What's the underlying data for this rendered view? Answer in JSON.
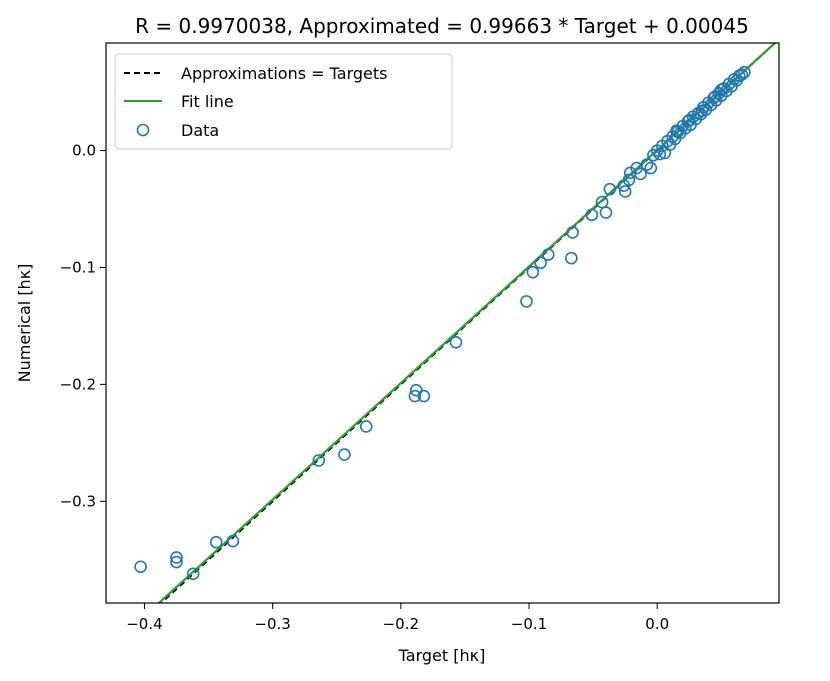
{
  "chart_data": {
    "type": "scatter",
    "title": "R = 0.9970038, Approximated = 0.99663 * Target + 0.00045",
    "xlabel": "Target [hκ]",
    "ylabel": "Numerical [hκ]",
    "xlim": [
      -0.43,
      0.095
    ],
    "ylim": [
      -0.387,
      0.092
    ],
    "xticks": [
      -0.4,
      -0.3,
      -0.2,
      -0.1,
      0.0
    ],
    "xtick_labels": [
      "−0.4",
      "−0.3",
      "−0.2",
      "−0.1",
      "0.0"
    ],
    "yticks": [
      -0.3,
      -0.2,
      -0.1,
      0.0
    ],
    "ytick_labels": [
      "−0.3",
      "−0.2",
      "−0.1",
      "0.0"
    ],
    "legend": {
      "position": "upper-left",
      "entries": [
        {
          "label": "Approximations = Targets",
          "style": "dashed-line",
          "color": "#000000"
        },
        {
          "label": "Fit line",
          "style": "solid-line",
          "color": "#2ca02c"
        },
        {
          "label": "Data",
          "style": "marker",
          "color": "#1f77b4"
        }
      ]
    },
    "fit_line": {
      "slope": 0.99663,
      "intercept": 0.00045,
      "color": "#2ca02c"
    },
    "identity_line": {
      "slope": 1,
      "intercept": 0,
      "color": "#000000"
    },
    "series": [
      {
        "name": "Data",
        "marker": "open-circle",
        "color": "#1f77b4",
        "points": [
          [
            -0.403,
            -0.356
          ],
          [
            -0.375,
            -0.348
          ],
          [
            -0.375,
            -0.352
          ],
          [
            -0.362,
            -0.362
          ],
          [
            -0.344,
            -0.335
          ],
          [
            -0.331,
            -0.334
          ],
          [
            -0.264,
            -0.265
          ],
          [
            -0.244,
            -0.26
          ],
          [
            -0.227,
            -0.236
          ],
          [
            -0.189,
            -0.21
          ],
          [
            -0.188,
            -0.205
          ],
          [
            -0.182,
            -0.21
          ],
          [
            -0.157,
            -0.164
          ],
          [
            -0.102,
            -0.129
          ],
          [
            -0.097,
            -0.104
          ],
          [
            -0.091,
            -0.096
          ],
          [
            -0.085,
            -0.089
          ],
          [
            -0.067,
            -0.092
          ],
          [
            -0.066,
            -0.07
          ],
          [
            -0.051,
            -0.055
          ],
          [
            -0.043,
            -0.044
          ],
          [
            -0.04,
            -0.053
          ],
          [
            -0.037,
            -0.033
          ],
          [
            -0.026,
            -0.03
          ],
          [
            -0.025,
            -0.035
          ],
          [
            -0.022,
            -0.025
          ],
          [
            -0.021,
            -0.019
          ],
          [
            -0.016,
            -0.015
          ],
          [
            -0.013,
            -0.02
          ],
          [
            -0.008,
            -0.012
          ],
          [
            -0.005,
            -0.015
          ],
          [
            -0.003,
            -0.004
          ],
          [
            0.0,
            0.0
          ],
          [
            0.002,
            -0.003
          ],
          [
            0.004,
            0.004
          ],
          [
            0.006,
            -0.002
          ],
          [
            0.008,
            0.008
          ],
          [
            0.01,
            0.005
          ],
          [
            0.012,
            0.012
          ],
          [
            0.014,
            0.01
          ],
          [
            0.016,
            0.016
          ],
          [
            0.018,
            0.015
          ],
          [
            0.02,
            0.021
          ],
          [
            0.022,
            0.019
          ],
          [
            0.024,
            0.025
          ],
          [
            0.026,
            0.022
          ],
          [
            0.028,
            0.029
          ],
          [
            0.03,
            0.027
          ],
          [
            0.032,
            0.032
          ],
          [
            0.034,
            0.031
          ],
          [
            0.036,
            0.037
          ],
          [
            0.038,
            0.035
          ],
          [
            0.04,
            0.041
          ],
          [
            0.042,
            0.039
          ],
          [
            0.044,
            0.045
          ],
          [
            0.046,
            0.043
          ],
          [
            0.048,
            0.049
          ],
          [
            0.05,
            0.047
          ],
          [
            0.052,
            0.053
          ],
          [
            0.054,
            0.051
          ],
          [
            0.056,
            0.057
          ],
          [
            0.058,
            0.055
          ],
          [
            0.06,
            0.061
          ],
          [
            0.062,
            0.06
          ],
          [
            0.064,
            0.064
          ],
          [
            0.066,
            0.065
          ],
          [
            0.068,
            0.067
          ],
          [
            0.05,
            0.052
          ],
          [
            0.045,
            0.046
          ],
          [
            0.035,
            0.034
          ],
          [
            0.025,
            0.026
          ],
          [
            0.015,
            0.017
          ]
        ]
      }
    ]
  }
}
